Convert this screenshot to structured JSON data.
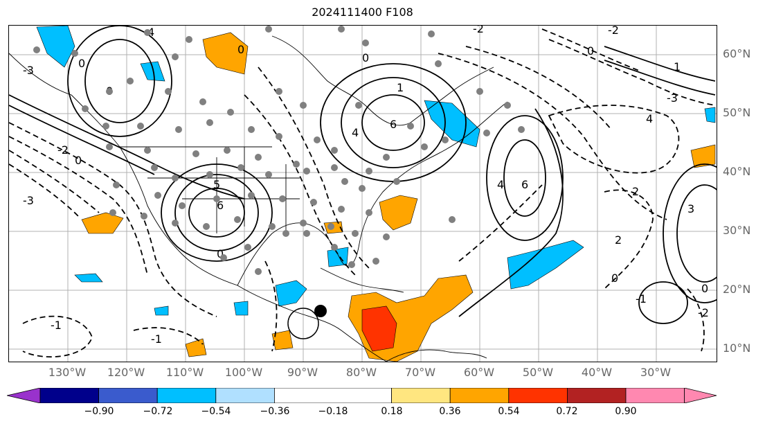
{
  "title": "2024111400 F108",
  "lat_labels": [
    "60°N",
    "50°N",
    "40°N",
    "30°N",
    "20°N",
    "10°N"
  ],
  "lon_labels": [
    "130°W",
    "120°W",
    "110°W",
    "100°W",
    "90°W",
    "80°W",
    "70°W",
    "60°W",
    "50°W",
    "40°W",
    "30°W"
  ],
  "contour_labels": [
    "0",
    "-1",
    "-2",
    "-3",
    "1",
    "2",
    "3",
    "4",
    "5",
    "6"
  ],
  "colorbar": {
    "ticks": [
      "−0.90",
      "−0.72",
      "−0.54",
      "−0.36",
      "−0.18",
      "0.18",
      "0.36",
      "0.54",
      "0.72",
      "0.90"
    ],
    "colors": [
      "#9932cc",
      "#00008b",
      "#3a5bcd",
      "#00bfff",
      "#b0e0ff",
      "#ffffff",
      "#ffe680",
      "#ffa500",
      "#ff3300",
      "#b22222",
      "#ff88b0"
    ]
  },
  "fill_colors": {
    "positive_light": "#ffa500",
    "positive_strong": "#ff3300",
    "negative": "#00bfff",
    "marker": "#808080"
  }
}
